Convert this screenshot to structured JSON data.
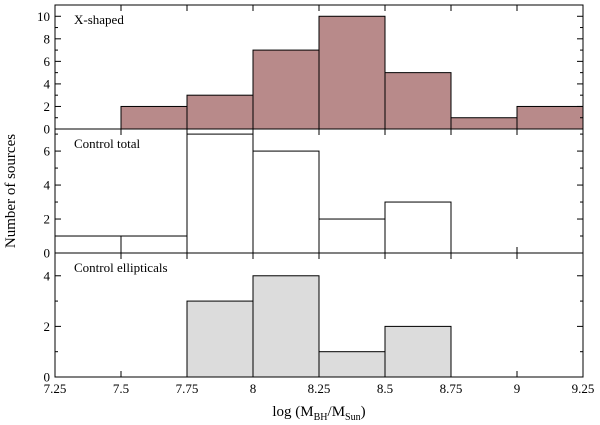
{
  "chart_data": {
    "type": "bar",
    "ylabel": "Number of sources",
    "xlabel": {
      "prefix": "log (M",
      "sub1": "BH",
      "mid": "/M",
      "sub2": "Sun",
      "suffix": ")"
    },
    "xlim": [
      7.25,
      9.25
    ],
    "xticks": [
      7.25,
      7.5,
      7.75,
      8,
      8.25,
      8.5,
      8.75,
      9,
      9.25
    ],
    "xtick_labels": [
      "7.25",
      "7.5",
      "7.75",
      "8",
      "8.25",
      "8.5",
      "8.75",
      "9",
      "9.25"
    ],
    "bin_edges": [
      7.25,
      7.5,
      7.75,
      8.0,
      8.25,
      8.5,
      8.75,
      9.0,
      9.25
    ],
    "panels": [
      {
        "label": "X-shaped",
        "values": [
          0,
          2,
          3,
          7,
          10,
          5,
          1,
          2
        ],
        "ylim": [
          0,
          11
        ],
        "yticks": [
          0,
          2,
          4,
          6,
          8,
          10
        ],
        "ytick_labels": [
          "0",
          "2",
          "4",
          "6",
          "8",
          "10"
        ],
        "color": "#b88a8a"
      },
      {
        "label": "Control total",
        "values": [
          1,
          1,
          7,
          6,
          2,
          3,
          0,
          0
        ],
        "ylim": [
          0,
          7.3
        ],
        "yticks": [
          0,
          2,
          4,
          6
        ],
        "ytick_labels": [
          "0",
          "2",
          "4",
          "6"
        ],
        "color": "#ffffff"
      },
      {
        "label": "Control ellipticals",
        "values": [
          0,
          0,
          3,
          4,
          1,
          2,
          0,
          0
        ],
        "ylim": [
          0,
          4.9
        ],
        "yticks": [
          0,
          2,
          4
        ],
        "ytick_labels": [
          "0",
          "2",
          "4"
        ],
        "color": "#dcdcdc"
      }
    ]
  }
}
